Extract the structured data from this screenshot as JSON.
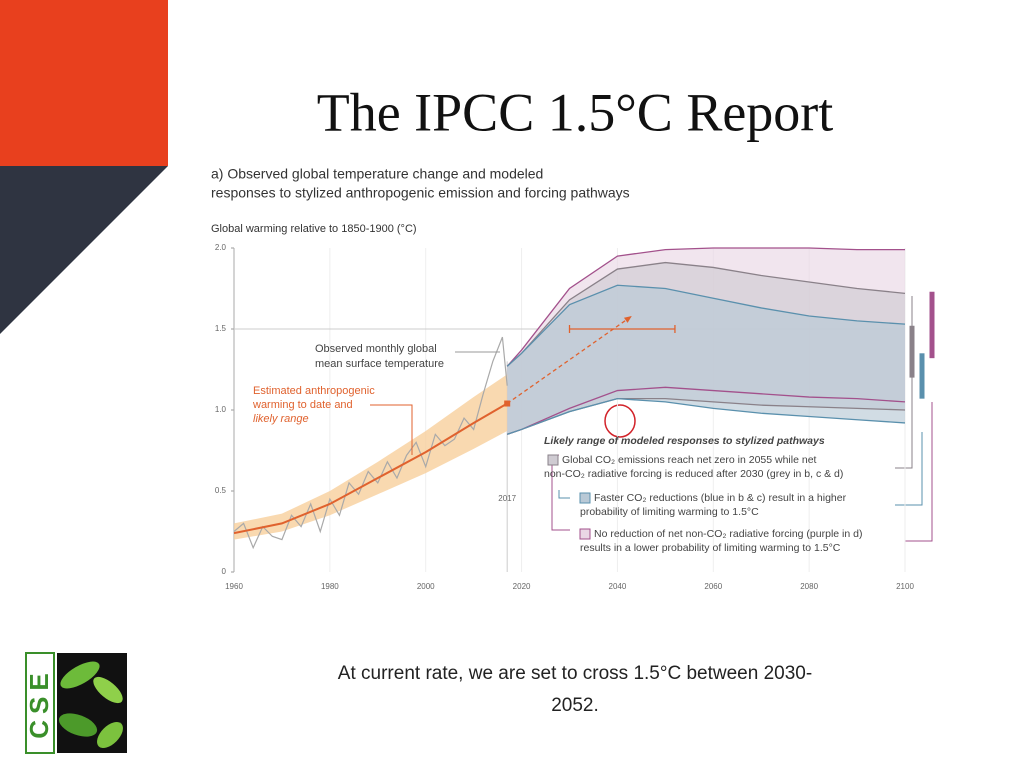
{
  "slide": {
    "title": "The IPCC 1.5°C Report",
    "caption": [
      "At current rate, we are set to cross 1.5°C between 2030-",
      "2052."
    ],
    "logo": "CSE"
  },
  "chart_data": {
    "type": "line",
    "title": [
      "a) Observed global temperature change and modeled",
      "responses to stylized anthropogenic emission and forcing pathways"
    ],
    "y_label": "Global warming relative to 1850-1900 (°C)",
    "xlim": [
      1960,
      2100
    ],
    "xticks": [
      1960,
      1980,
      2000,
      2020,
      2040,
      2060,
      2080,
      2100
    ],
    "ylim": [
      0,
      2
    ],
    "yticks": [
      0,
      0.5,
      {
        "value": 1,
        "label": "1.0"
      },
      1.5,
      {
        "value": 2,
        "label": "2.0"
      }
    ],
    "grid": true,
    "reference_y": 1.5,
    "reference_x": {
      "value": 2017,
      "label": "2017"
    },
    "observed": {
      "label": [
        "Observed monthly global",
        "mean surface temperature"
      ],
      "color": "#a9a9a9",
      "x": [
        1960,
        1962,
        1964,
        1966,
        1968,
        1970,
        1972,
        1974,
        1976,
        1978,
        1980,
        1982,
        1984,
        1986,
        1988,
        1990,
        1992,
        1994,
        1996,
        1998,
        2000,
        2002,
        2004,
        2006,
        2008,
        2010,
        2012,
        2014,
        2016,
        2017
      ],
      "values": [
        0.25,
        0.3,
        0.15,
        0.28,
        0.22,
        0.2,
        0.35,
        0.28,
        0.42,
        0.25,
        0.45,
        0.35,
        0.55,
        0.48,
        0.62,
        0.55,
        0.68,
        0.58,
        0.72,
        0.8,
        0.65,
        0.85,
        0.78,
        0.82,
        0.95,
        0.88,
        1.1,
        1.3,
        1.45,
        1.15
      ]
    },
    "anthropogenic": {
      "label": [
        "Estimated anthropogenic",
        "warming to date and",
        "likely range"
      ],
      "color": "#e0622e",
      "band_color": "#f7cf9c",
      "x": [
        1960,
        1970,
        1980,
        1990,
        2000,
        2010,
        2017
      ],
      "values": [
        0.24,
        0.3,
        0.42,
        0.58,
        0.74,
        0.92,
        1.04
      ],
      "lower": [
        0.2,
        0.25,
        0.35,
        0.48,
        0.61,
        0.76,
        0.87
      ],
      "upper": [
        0.3,
        0.36,
        0.5,
        0.68,
        0.87,
        1.08,
        1.22
      ]
    },
    "projection_arrow": {
      "x": [
        2017,
        2043
      ],
      "y": [
        1.04,
        1.58
      ],
      "color": "#e0622e"
    },
    "crossing_window": {
      "x": [
        2030,
        2052
      ],
      "y": 1.5,
      "color": "#e0622e"
    },
    "legend_title": "Likely range of modeled responses to stylized pathways",
    "bands": {
      "x": [
        2017,
        2020,
        2030,
        2040,
        2050,
        2060,
        2070,
        2080,
        2090,
        2100
      ],
      "series": [
        {
          "label": [
            "No reduction of net non-CO₂ radiative forcing (purple in d)",
            "results in a lower probability of limiting warming to 1.5°C"
          ],
          "color": "#a3518c",
          "fill": "#ead7e5",
          "upper": [
            1.27,
            1.37,
            1.75,
            1.95,
            1.99,
            2.0,
            2.0,
            2.0,
            1.99,
            1.99
          ],
          "lower": [
            0.85,
            0.88,
            1.01,
            1.12,
            1.14,
            1.12,
            1.1,
            1.08,
            1.07,
            1.05
          ],
          "range_2100": [
            1.32,
            1.73
          ]
        },
        {
          "label": [
            "Global CO₂ emissions reach net zero in 2055 while net",
            "non-CO₂ radiative forcing is reduced after 2030 (grey in b, c & d)"
          ],
          "color": "#8a8189",
          "fill": "#cfcbd2",
          "upper": [
            1.27,
            1.35,
            1.68,
            1.87,
            1.91,
            1.88,
            1.83,
            1.79,
            1.75,
            1.72
          ],
          "lower": [
            0.85,
            0.88,
            0.99,
            1.07,
            1.07,
            1.05,
            1.03,
            1.02,
            1.01,
            1.0
          ],
          "range_2100": [
            1.2,
            1.52
          ]
        },
        {
          "label": [
            "Faster CO₂ reductions (blue in b & c) result in a higher",
            "probability of limiting warming to 1.5°C"
          ],
          "color": "#5a90ad",
          "fill": "#b9c9d6",
          "upper": [
            1.27,
            1.35,
            1.65,
            1.77,
            1.75,
            1.69,
            1.63,
            1.58,
            1.55,
            1.53
          ],
          "lower": [
            0.85,
            0.88,
            0.99,
            1.07,
            1.05,
            1.01,
            0.98,
            0.96,
            0.94,
            0.92
          ],
          "range_2100": [
            1.07,
            1.35
          ]
        }
      ]
    }
  }
}
